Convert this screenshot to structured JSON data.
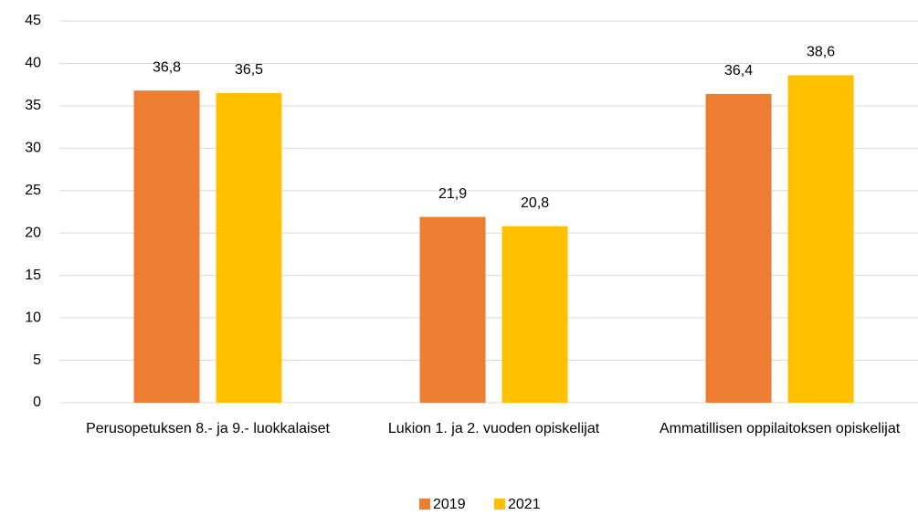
{
  "chart_data": {
    "type": "bar",
    "categories": [
      "Perusopetuksen 8.- ja 9.- luokkalaiset",
      "Lukion 1. ja 2. vuoden opiskelijat",
      "Ammatillisen oppilaitoksen opiskelijat"
    ],
    "series": [
      {
        "name": "2019",
        "color": "#ED7D31",
        "values": [
          36.8,
          21.9,
          36.4
        ],
        "value_labels": [
          "36,8",
          "21,9",
          "36,4"
        ]
      },
      {
        "name": "2021",
        "color": "#FFC000",
        "values": [
          36.5,
          20.8,
          38.6
        ],
        "value_labels": [
          "36,5",
          "20,8",
          "38,6"
        ]
      }
    ],
    "ylim": [
      0,
      45
    ],
    "yticks": [
      0,
      5,
      10,
      15,
      20,
      25,
      30,
      35,
      40,
      45
    ],
    "grid": true,
    "legend": "bottom"
  }
}
